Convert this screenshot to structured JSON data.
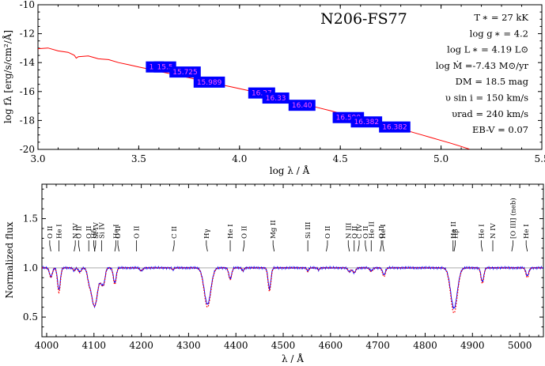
{
  "title": "N206-FS77",
  "parameters": [
    "T ∗ = 27 kK",
    "log g ∗ =  4.2",
    "log L ∗ = 4.19 L⊙",
    "log Ṁ =-7.43 M⊙/yr",
    "DM = 18.5 mag",
    "υ sin i = 150 km/s",
    "υrad = 240 km/s",
    "EB-V = 0.07"
  ],
  "colors": {
    "model": "#ff0000",
    "observed": "#0000ff",
    "box": "#0000ff",
    "box_text": "#ff55ff",
    "reference": "#aaaaaa"
  },
  "chart_data": [
    {
      "type": "line",
      "name": "sed",
      "xlabel": "log λ / Å",
      "ylabel": "log fλ [erg/s/cm²/Å]",
      "xlim": [
        3.0,
        5.5
      ],
      "ylim": [
        -20,
        -10
      ],
      "xticks": [
        3.0,
        3.5,
        4.0,
        4.5,
        5.0,
        5.5
      ],
      "xtick_labels": [
        "3.0",
        "3.5",
        "4.0",
        "4.5",
        "5.0",
        "5.5"
      ],
      "yticks": [
        -10,
        -12,
        -14,
        -16,
        -18,
        -20
      ],
      "ytick_labels": [
        "-10",
        "-12",
        "-14",
        "-16",
        "-18",
        "-20"
      ],
      "series": [
        {
          "x": [
            3.0,
            3.05,
            3.1,
            3.15,
            3.18,
            3.19,
            3.2,
            3.25,
            3.3,
            3.35,
            3.4,
            3.45,
            3.5,
            3.55,
            3.6,
            3.65,
            3.7,
            3.75,
            3.8,
            3.85,
            3.9,
            3.95,
            4.0,
            4.05,
            4.1,
            4.15,
            4.2,
            4.25,
            4.3,
            4.35,
            4.4,
            4.45,
            4.5,
            4.55,
            4.6,
            4.65,
            4.7,
            4.75,
            4.8,
            4.85,
            4.9,
            4.95,
            5.0,
            5.05,
            5.1,
            5.14
          ],
          "y": [
            -13.0,
            -13.05,
            -13.15,
            -13.35,
            -13.45,
            -13.75,
            -13.55,
            -13.6,
            -13.7,
            -13.85,
            -14.0,
            -14.15,
            -14.3,
            -14.45,
            -14.6,
            -14.75,
            -14.9,
            -15.05,
            -15.2,
            -15.35,
            -15.5,
            -15.65,
            -15.8,
            -15.95,
            -16.1,
            -16.28,
            -16.45,
            -16.62,
            -16.8,
            -16.98,
            -17.15,
            -17.32,
            -17.5,
            -17.68,
            -17.85,
            -18.05,
            -18.22,
            -18.4,
            -18.6,
            -18.78,
            -18.98,
            -19.18,
            -19.38,
            -19.58,
            -19.8,
            -19.98
          ]
        }
      ],
      "photometry": [
        {
          "label": "14.",
          "x": 3.58,
          "y": -14.3
        },
        {
          "label": "15.5",
          "x": 3.63,
          "y": -14.3
        },
        {
          "label": "15.725",
          "x": 3.73,
          "y": -14.65
        },
        {
          "label": "15.989",
          "x": 3.85,
          "y": -15.35
        },
        {
          "label": "16.27",
          "x": 4.11,
          "y": -16.1
        },
        {
          "label": "16.33",
          "x": 4.18,
          "y": -16.45
        },
        {
          "label": "16.40",
          "x": 4.31,
          "y": -16.95
        },
        {
          "label": "16.590",
          "x": 4.54,
          "y": -17.8
        },
        {
          "label": "16.382",
          "x": 4.63,
          "y": -18.1
        },
        {
          "label": "16.382",
          "x": 4.77,
          "y": -18.45
        }
      ]
    },
    {
      "type": "line",
      "name": "normalized_spectrum",
      "xlabel": "λ / Å",
      "ylabel": "Normalized flux",
      "xlim": [
        3990,
        5050
      ],
      "ylim": [
        0.3,
        1.85
      ],
      "xticks": [
        4000,
        4100,
        4200,
        4300,
        4400,
        4500,
        4600,
        4700,
        4800,
        4900,
        5000
      ],
      "xtick_labels": [
        "4000",
        "4100",
        "4200",
        "4300",
        "4400",
        "4500",
        "4600",
        "4700",
        "4800",
        "4900",
        "5000"
      ],
      "yticks": [
        0.5,
        1.0,
        1.5
      ],
      "ytick_labels": [
        "0.5",
        "1.0",
        "1.5"
      ],
      "reference_level": 1.0,
      "series": [
        {
          "name": "observed",
          "lines": [
            [
              4009,
              0.91,
              3
            ],
            [
              4026,
              0.78,
              3
            ],
            [
              4058,
              0.97,
              2
            ],
            [
              4070,
              0.96,
              3
            ],
            [
              4089,
              0.93,
              3
            ],
            [
              4101,
              0.61,
              7
            ],
            [
              4116,
              0.9,
              3
            ],
            [
              4121,
              0.87,
              3
            ],
            [
              4144,
              0.85,
              3
            ],
            [
              4200,
              0.97,
              3
            ],
            [
              4267,
              0.98,
              2
            ],
            [
              4340,
              0.63,
              7
            ],
            [
              4388,
              0.89,
              3
            ],
            [
              4415,
              0.97,
              2
            ],
            [
              4471,
              0.79,
              3
            ],
            [
              4552,
              0.97,
              2
            ],
            [
              4575,
              0.98,
              2
            ],
            [
              4640,
              0.96,
              3
            ],
            [
              4650,
              0.95,
              3
            ],
            [
              4686,
              0.97,
              3
            ],
            [
              4713,
              0.93,
              3
            ],
            [
              4861,
              0.59,
              7
            ],
            [
              4921,
              0.86,
              3
            ],
            [
              5016,
              0.92,
              3
            ]
          ]
        },
        {
          "name": "model",
          "lines": [
            [
              4009,
              0.9,
              3
            ],
            [
              4026,
              0.75,
              3
            ],
            [
              4058,
              0.97,
              2
            ],
            [
              4070,
              0.95,
              3
            ],
            [
              4089,
              0.92,
              3
            ],
            [
              4101,
              0.61,
              7
            ],
            [
              4116,
              0.9,
              3
            ],
            [
              4121,
              0.86,
              3
            ],
            [
              4144,
              0.83,
              3
            ],
            [
              4200,
              0.97,
              3
            ],
            [
              4267,
              0.98,
              2
            ],
            [
              4340,
              0.6,
              7
            ],
            [
              4388,
              0.88,
              3
            ],
            [
              4415,
              0.97,
              2
            ],
            [
              4471,
              0.76,
              3
            ],
            [
              4552,
              0.96,
              2
            ],
            [
              4575,
              0.98,
              2
            ],
            [
              4640,
              0.96,
              3
            ],
            [
              4650,
              0.95,
              3
            ],
            [
              4686,
              0.96,
              3
            ],
            [
              4713,
              0.91,
              3
            ],
            [
              4861,
              0.54,
              7
            ],
            [
              4921,
              0.84,
              3
            ],
            [
              5016,
              0.9,
              3
            ]
          ]
        }
      ],
      "line_ids": [
        {
          "label": "O II",
          "x": 4009
        },
        {
          "label": "He I",
          "x": 4026
        },
        {
          "label": "N IV",
          "x": 4058
        },
        {
          "label": "O II",
          "x": 4070
        },
        {
          "label": "O II",
          "x": 4089
        },
        {
          "label": "Si IV",
          "x": 4101
        },
        {
          "label": "Hδ",
          "x": 4102
        },
        {
          "label": "Si IV",
          "x": 4116
        },
        {
          "label": "He I",
          "x": 4144
        },
        {
          "label": "O II",
          "x": 4153
        },
        {
          "label": "O II",
          "x": 4190
        },
        {
          "label": "C II",
          "x": 4267
        },
        {
          "label": "Hγ",
          "x": 4340
        },
        {
          "label": "He I",
          "x": 4388
        },
        {
          "label": "O II",
          "x": 4415
        },
        {
          "label": "Mg II",
          "x": 4481
        },
        {
          "label": "Si III",
          "x": 4552
        },
        {
          "label": "O II",
          "x": 4591
        },
        {
          "label": "N III",
          "x": 4640
        },
        {
          "label": "O II",
          "x": 4650
        },
        {
          "label": "C IV",
          "x": 4658
        },
        {
          "label": "O II",
          "x": 4676
        },
        {
          "label": "He II",
          "x": 4686
        },
        {
          "label": "O II",
          "x": 4705
        },
        {
          "label": "He I",
          "x": 4713
        },
        {
          "label": "He II",
          "x": 4859
        },
        {
          "label": "Hβ",
          "x": 4861
        },
        {
          "label": "He I",
          "x": 4921
        },
        {
          "label": "N IV",
          "x": 4943
        },
        {
          "label": "[O III] (neb)",
          "x": 4983
        },
        {
          "label": "He I",
          "x": 5016
        }
      ]
    }
  ]
}
